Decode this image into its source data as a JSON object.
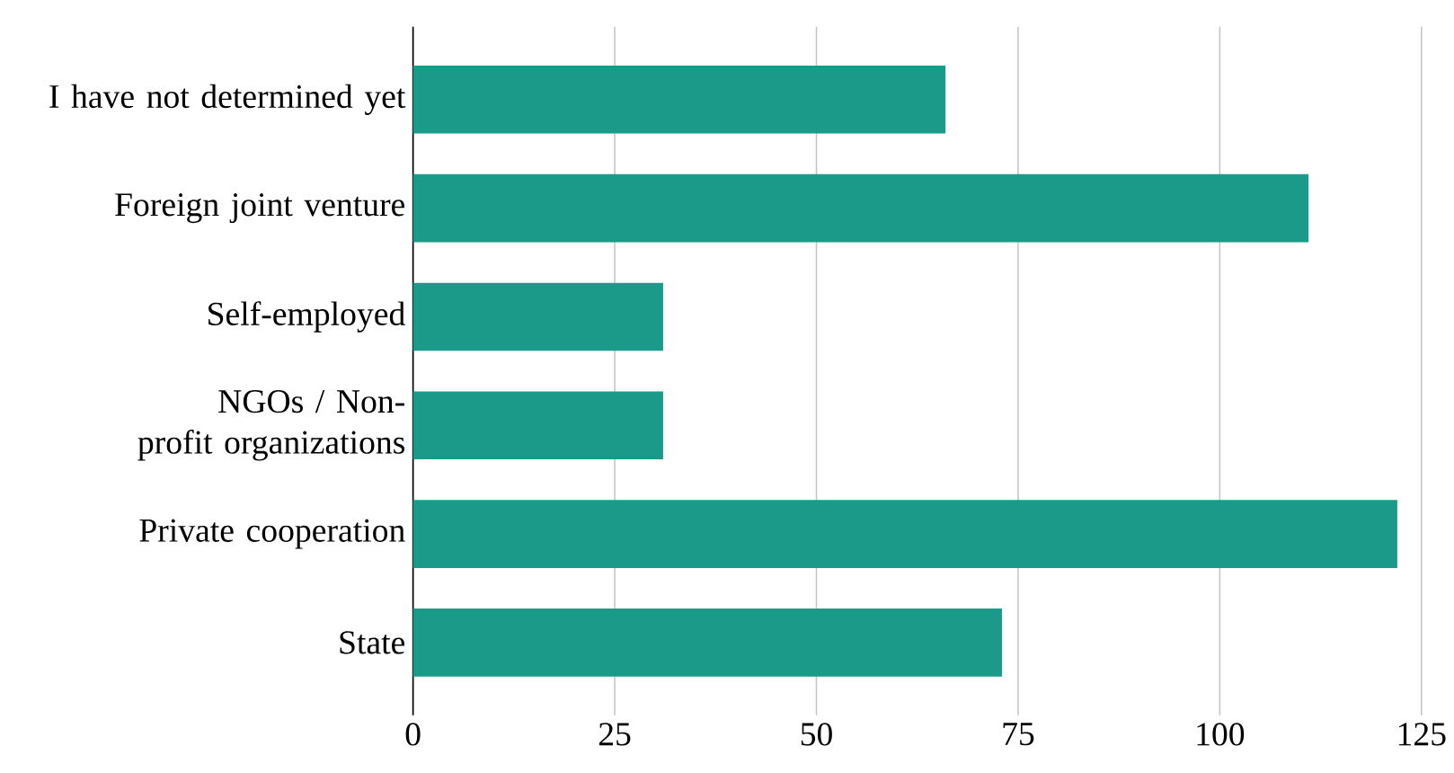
{
  "chart_data": {
    "type": "bar",
    "orientation": "horizontal",
    "categories": [
      "I have not determined yet",
      "Foreign joint venture",
      "Self-employed",
      "NGOs / Non-profit organizations",
      "Private cooperation",
      "State"
    ],
    "values": [
      66,
      111,
      31,
      31,
      122,
      73
    ],
    "color": "#1b9a8a",
    "xlim": [
      0,
      125
    ],
    "xticks": [
      0,
      25,
      50,
      75,
      100,
      125
    ],
    "grid": "x"
  }
}
